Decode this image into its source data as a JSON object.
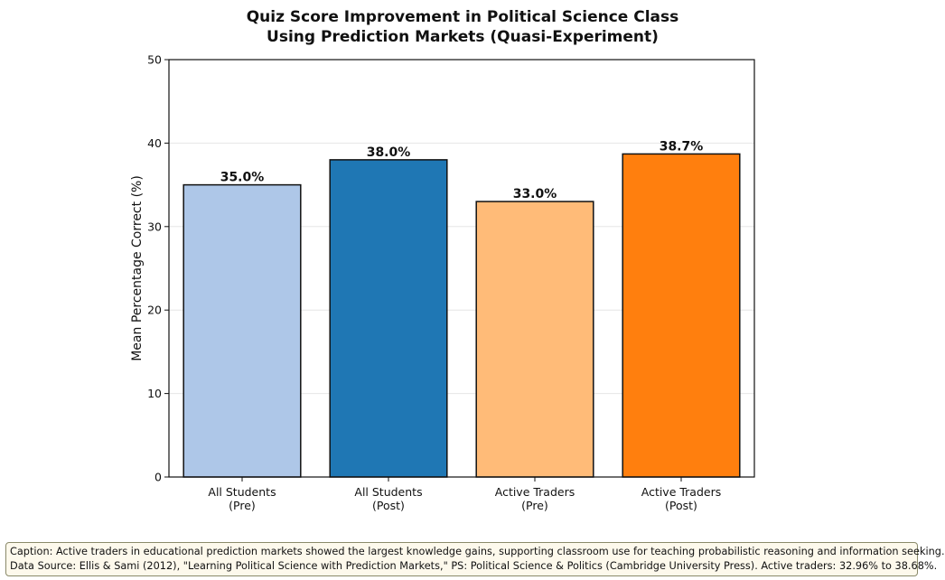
{
  "chart_data": {
    "type": "bar",
    "title": "Quiz Score Improvement in Political Science Class\nUsing Prediction Markets (Quasi-Experiment)",
    "ylabel": "Mean Percentage Correct (%)",
    "xlabel": "",
    "ylim": [
      0,
      50
    ],
    "yticks": [
      0,
      10,
      20,
      30,
      40,
      50
    ],
    "categories": [
      "All Students\n(Pre)",
      "All Students\n(Post)",
      "Active Traders\n(Pre)",
      "Active Traders\n(Post)"
    ],
    "values": [
      35.0,
      38.0,
      33.0,
      38.7
    ],
    "data_labels": [
      "35.0%",
      "38.0%",
      "33.0%",
      "38.7%"
    ],
    "bar_colors": [
      "#aec7e8",
      "#1f77b4",
      "#ffbb78",
      "#ff7f0e"
    ],
    "grid": "horizontal"
  },
  "caption": {
    "line1": "Caption: Active traders in educational prediction markets showed the largest knowledge gains, supporting classroom use for teaching probabilistic reasoning and information seeking.",
    "line2": "Data Source: Ellis & Sami (2012), \"Learning Political Science with Prediction Markets,\" PS: Political Science & Politics (Cambridge University Press). Active traders: 32.96% to 38.68%."
  }
}
